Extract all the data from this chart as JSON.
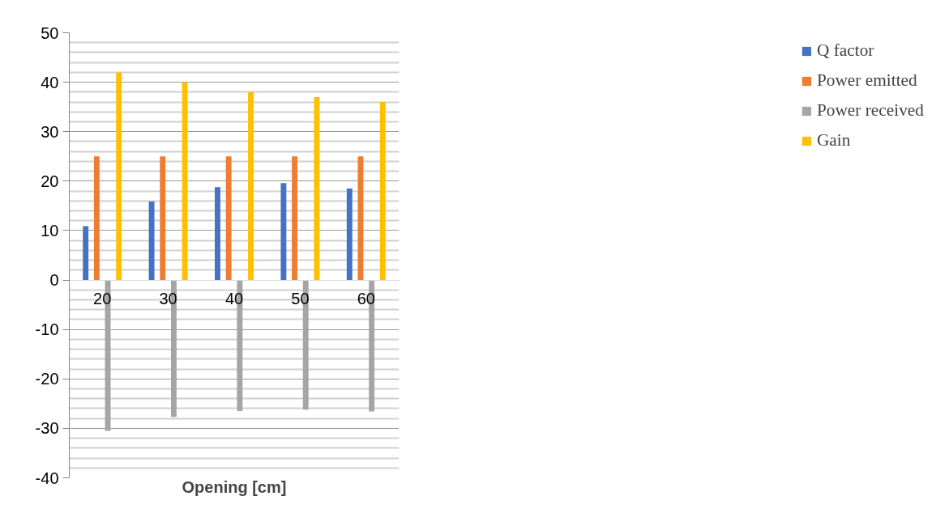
{
  "chart_data": {
    "type": "bar",
    "xlabel": "Opening [cm]",
    "categories": [
      "20",
      "30",
      "40",
      "50",
      "60"
    ],
    "series": [
      {
        "name": "Q factor",
        "color": "#4472c4",
        "values": [
          10.9,
          15.9,
          18.8,
          19.6,
          18.5
        ]
      },
      {
        "name": "Power emitted",
        "color": "#ed7d31",
        "values": [
          25,
          25,
          25,
          25,
          25
        ]
      },
      {
        "name": "Power received",
        "color": "#a5a5a5",
        "values": [
          -30.5,
          -27.7,
          -26.5,
          -26.2,
          -26.6
        ]
      },
      {
        "name": "Gain",
        "color": "#ffc000",
        "values": [
          42,
          40,
          38,
          37,
          36
        ]
      }
    ],
    "ylim": [
      -40,
      50
    ],
    "yticks": [
      -40,
      -30,
      -20,
      -10,
      0,
      10,
      20,
      30,
      40,
      50
    ],
    "grid": "y",
    "legend": "right"
  }
}
